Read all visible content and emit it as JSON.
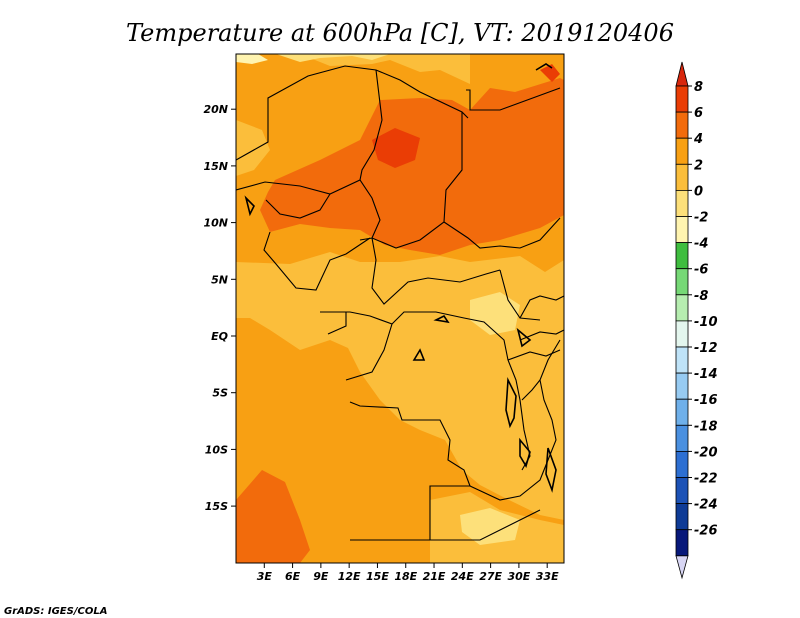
{
  "title": "Temperature at 600hPa [C], VT: 2019120406",
  "credit": "GrADS: IGES/COLA",
  "map": {
    "lon_range": [
      0,
      35
    ],
    "lat_range": [
      -20,
      24.5
    ],
    "x_tick_labels": [
      "3E",
      "6E",
      "9E",
      "12E",
      "15E",
      "18E",
      "21E",
      "24E",
      "27E",
      "30E",
      "33E"
    ],
    "y_tick_labels": [
      "20N",
      "15N",
      "10N",
      "5N",
      "EQ",
      "5S",
      "10S",
      "15S"
    ],
    "colors": {
      "base_2_4": "#f8a013",
      "warm_4_6": "#f26b0c",
      "hot_6_8": "#ea3d05",
      "mild_0_2": "#fbbe3b",
      "cool_m2_0": "#fde07a",
      "cold_m4_m2": "#fff4b0",
      "border": "#000000"
    }
  },
  "colorbar": {
    "labels": [
      "8",
      "6",
      "4",
      "2",
      "0",
      "-2",
      "-4",
      "-6",
      "-8",
      "-10",
      "-12",
      "-14",
      "-16",
      "-18",
      "-20",
      "-22",
      "-24",
      "-26"
    ],
    "colors": [
      "#ea3d05",
      "#f26b0c",
      "#f8a013",
      "#fbbe3b",
      "#fde07a",
      "#fff4b0",
      "#3fbd3f",
      "#76d876",
      "#b6edb0",
      "#e4f6ee",
      "#bfe3f8",
      "#97cbf2",
      "#6fb0ea",
      "#4a90e0",
      "#2d6fd2",
      "#1c52b6",
      "#0e3b96",
      "#07187a",
      "#d8d6f4"
    ],
    "top_arrow_color": "#d8270d",
    "bottom_arrow_color": "#d8d6f4"
  }
}
